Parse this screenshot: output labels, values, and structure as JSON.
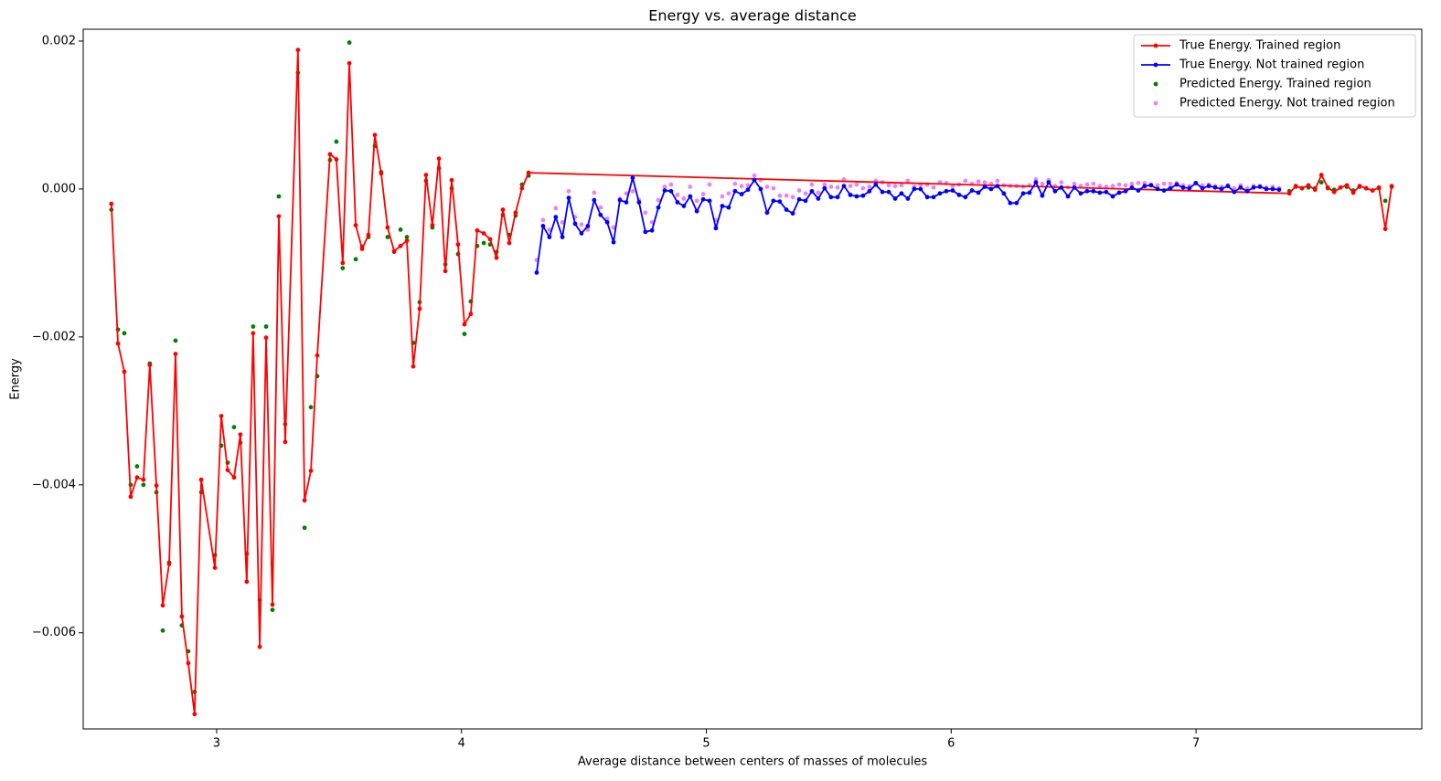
{
  "chart_data": {
    "type": "line",
    "title": "Energy vs. average distance",
    "x_label": "Average distance between centers of masses of molecules",
    "y_label": "Energy",
    "xlim": [
      2.455,
      7.922
    ],
    "ylim": [
      -0.0073,
      0.00216
    ],
    "xticks": [
      3,
      4,
      5,
      6,
      7
    ],
    "yticks": [
      {
        "value": 0.002,
        "label": "0.002"
      },
      {
        "value": 0,
        "label": "0.000"
      },
      {
        "value": -0.002,
        "label": "−0.002"
      },
      {
        "value": -0.004,
        "label": "−0.004"
      },
      {
        "value": -0.006,
        "label": "−0.006"
      }
    ],
    "grid": false,
    "legend": "upper right",
    "series": [
      {
        "name": "True Energy. Trained region",
        "color": "#ff0000",
        "type": "line",
        "x": [
          2.57,
          2.597,
          2.623,
          2.649,
          2.675,
          2.701,
          2.727,
          2.754,
          2.78,
          2.806,
          2.832,
          2.858,
          2.884,
          2.91,
          2.937,
          2.993,
          3.019,
          3.045,
          3.071,
          3.097,
          3.123,
          3.149,
          3.176,
          3.202,
          3.228,
          3.254,
          3.28,
          3.332,
          3.359,
          3.385,
          3.411,
          3.463,
          3.489,
          3.515,
          3.542,
          3.568,
          3.594,
          3.62,
          3.646,
          3.672,
          3.698,
          3.725,
          3.751,
          3.777,
          3.803,
          3.829,
          3.855,
          3.881,
          3.908,
          3.934,
          3.96,
          3.986,
          4.012,
          4.038,
          4.064,
          4.091,
          4.117,
          4.143,
          4.169,
          4.195,
          4.221,
          4.247,
          4.274,
          7.381,
          7.407,
          7.433,
          7.459,
          7.486,
          7.512,
          7.538,
          7.564,
          7.59,
          7.616,
          7.642,
          7.668,
          7.695,
          7.721,
          7.747,
          7.773,
          7.799
        ],
        "values": [
          -0.0002,
          -0.00209,
          -0.00247,
          -0.00416,
          -0.0039,
          -0.00393,
          -0.00238,
          -0.00401,
          -0.00563,
          -0.00507,
          -0.00223,
          -0.00578,
          -0.00641,
          -0.0071,
          -0.00393,
          -0.00512,
          -0.00307,
          -0.0038,
          -0.0039,
          -0.00332,
          -0.00531,
          -0.00195,
          -0.00619,
          -0.00201,
          -0.00562,
          -0.00037,
          -0.00342,
          0.00188,
          -0.00421,
          -0.00381,
          -0.00225,
          0.00047,
          0.0004,
          -0.001,
          0.0017,
          -0.00049,
          -0.00081,
          -0.00062,
          0.00073,
          0.00021,
          -0.00052,
          -0.00084,
          -0.00077,
          -0.0007,
          -0.0024,
          -0.00162,
          0.00019,
          -0.00049,
          0.00041,
          -0.00111,
          0.00012,
          -0.00075,
          -0.00183,
          -0.00169,
          -0.00056,
          -0.0006,
          -0.00068,
          -0.00093,
          -0.00028,
          -0.00073,
          -0.00032,
          1e-05,
          0.00022,
          -6e-05,
          4e-05,
          1e-05,
          5e-05,
          -1e-05,
          0.00019,
          2e-05,
          -4e-05,
          2e-05,
          5e-05,
          -5e-05,
          4e-05,
          1e-05,
          -2e-05,
          2e-05,
          -0.00054,
          4e-05
        ]
      },
      {
        "name": "True Energy. Not trained region",
        "color": "#0000ff",
        "type": "line",
        "x": [
          4.307,
          4.333,
          4.359,
          4.385,
          4.412,
          4.438,
          4.464,
          4.49,
          4.516,
          4.542,
          4.568,
          4.595,
          4.621,
          4.647,
          4.673,
          4.699,
          4.725,
          4.751,
          4.778,
          4.804,
          4.83,
          4.856,
          4.882,
          4.908,
          4.934,
          4.961,
          4.987,
          5.013,
          5.039,
          5.065,
          5.091,
          5.117,
          5.144,
          5.17,
          5.196,
          5.222,
          5.248,
          5.274,
          5.3,
          5.327,
          5.353,
          5.379,
          5.405,
          5.431,
          5.457,
          5.483,
          5.509,
          5.536,
          5.562,
          5.588,
          5.614,
          5.64,
          5.666,
          5.692,
          5.719,
          5.745,
          5.771,
          5.797,
          5.823,
          5.849,
          5.875,
          5.902,
          5.928,
          5.954,
          5.98,
          6.006,
          6.032,
          6.058,
          6.085,
          6.111,
          6.137,
          6.163,
          6.189,
          6.215,
          6.241,
          6.267,
          6.294,
          6.32,
          6.346,
          6.372,
          6.398,
          6.424,
          6.45,
          6.477,
          6.503,
          6.529,
          6.555,
          6.581,
          6.607,
          6.633,
          6.66,
          6.686,
          6.712,
          6.738,
          6.764,
          6.79,
          6.816,
          6.843,
          6.869,
          6.895,
          6.921,
          6.947,
          6.973,
          6.999,
          7.026,
          7.052,
          7.078,
          7.104,
          7.13,
          7.156,
          7.182,
          7.209,
          7.235,
          7.261,
          7.287,
          7.313,
          7.339
        ],
        "values": [
          -0.00113,
          -0.0005,
          -0.00065,
          -0.00038,
          -0.00065,
          -0.00012,
          -0.00047,
          -0.0006,
          -0.0005,
          -0.00015,
          -0.00035,
          -0.00045,
          -0.00072,
          -0.00015,
          -0.00018,
          0.00015,
          -0.00018,
          -0.00058,
          -0.00056,
          -0.00025,
          -2e-05,
          -3e-05,
          -0.00018,
          -0.00023,
          -0.0001,
          -0.0003,
          -0.00014,
          -0.00016,
          -0.00053,
          -0.00023,
          -0.00025,
          -3e-05,
          -7e-05,
          -1e-05,
          0.00012,
          0,
          -0.00032,
          -0.00016,
          -0.00017,
          -0.00028,
          -0.00033,
          -0.00014,
          -0.00016,
          -3e-05,
          -0.00013,
          1e-05,
          -0.00011,
          -0.00011,
          4e-05,
          -8e-05,
          -0.0001,
          -9e-05,
          -3e-05,
          6e-05,
          -4e-05,
          -4e-05,
          -0.00013,
          -6e-05,
          -0.00013,
          0,
          0,
          -0.00011,
          -0.00011,
          -6e-05,
          -3e-05,
          -2e-05,
          -8e-05,
          -0.00011,
          -2e-05,
          -5e-05,
          3e-05,
          0,
          4e-05,
          -6e-05,
          -0.00019,
          -0.00019,
          -6e-05,
          -5e-05,
          9e-05,
          -9e-05,
          9e-05,
          -3e-05,
          2e-05,
          -0.0001,
          2e-05,
          -6e-05,
          -3e-05,
          -3e-05,
          -5e-05,
          -4e-05,
          -0.0001,
          -5e-05,
          -3e-05,
          2e-05,
          -2e-05,
          4e-05,
          5e-05,
          0,
          -2e-05,
          1e-05,
          6e-05,
          2e-05,
          1e-05,
          8e-05,
          1e-05,
          4e-05,
          2e-05,
          0,
          4e-05,
          -4e-05,
          2e-05,
          -3e-05,
          2e-05,
          3e-05,
          0,
          0,
          -1e-05
        ]
      },
      {
        "name": "Predicted Energy. Trained region",
        "color": "#008000",
        "type": "scatter",
        "x": [
          2.57,
          2.597,
          2.623,
          2.649,
          2.675,
          2.701,
          2.727,
          2.754,
          2.78,
          2.806,
          2.832,
          2.858,
          2.884,
          2.91,
          2.937,
          2.993,
          3.019,
          3.045,
          3.071,
          3.097,
          3.123,
          3.149,
          3.176,
          3.202,
          3.228,
          3.254,
          3.28,
          3.332,
          3.359,
          3.385,
          3.411,
          3.463,
          3.489,
          3.515,
          3.542,
          3.568,
          3.594,
          3.62,
          3.646,
          3.672,
          3.698,
          3.725,
          3.751,
          3.777,
          3.803,
          3.829,
          3.855,
          3.881,
          3.908,
          3.934,
          3.96,
          3.986,
          4.012,
          4.038,
          4.064,
          4.091,
          4.117,
          4.143,
          4.169,
          4.195,
          4.221,
          4.247,
          4.274,
          7.381,
          7.407,
          7.433,
          7.459,
          7.486,
          7.512,
          7.538,
          7.564,
          7.59,
          7.616,
          7.642,
          7.668,
          7.695,
          7.721,
          7.747,
          7.773,
          7.799
        ],
        "values": [
          -0.00028,
          -0.0019,
          -0.00195,
          -0.004,
          -0.00375,
          -0.004,
          -0.00236,
          -0.0041,
          -0.00597,
          -0.00505,
          -0.00205,
          -0.0059,
          -0.00625,
          -0.0068,
          -0.0041,
          -0.00495,
          -0.00347,
          -0.0037,
          -0.00322,
          -0.00343,
          -0.00493,
          -0.00186,
          -0.00556,
          -0.00186,
          -0.00569,
          -0.0001,
          -0.00318,
          0.00157,
          -0.00458,
          -0.00295,
          -0.00253,
          0.00039,
          0.00064,
          -0.00107,
          0.00198,
          -0.00095,
          -0.00078,
          -0.00065,
          0.00058,
          0.00023,
          -0.00065,
          -0.00085,
          -0.00055,
          -0.00065,
          -0.00208,
          -0.00153,
          0.00011,
          -0.00052,
          0.00028,
          -0.00102,
          1e-05,
          -0.00088,
          -0.00196,
          -0.00152,
          -0.00077,
          -0.00073,
          -0.00075,
          -0.00085,
          -0.00035,
          -0.00062,
          -0.00036,
          6e-05,
          0.00018,
          -3e-05,
          3e-05,
          1e-05,
          2e-05,
          1e-05,
          9e-05,
          1e-05,
          -1e-05,
          2e-05,
          3e-05,
          -2e-05,
          3e-05,
          1e-05,
          -2e-05,
          1e-05,
          -0.00016,
          3e-05
        ]
      },
      {
        "name": "Predicted Energy. Not trained region",
        "color": "#ee82ee",
        "type": "scatter",
        "x": [
          4.307,
          4.333,
          4.359,
          4.385,
          4.412,
          4.438,
          4.464,
          4.49,
          4.516,
          4.542,
          4.568,
          4.595,
          4.621,
          4.647,
          4.673,
          4.699,
          4.725,
          4.751,
          4.778,
          4.804,
          4.83,
          4.856,
          4.882,
          4.908,
          4.934,
          4.961,
          4.987,
          5.013,
          5.039,
          5.065,
          5.091,
          5.117,
          5.144,
          5.17,
          5.196,
          5.222,
          5.248,
          5.274,
          5.3,
          5.327,
          5.353,
          5.379,
          5.405,
          5.431,
          5.457,
          5.483,
          5.509,
          5.536,
          5.562,
          5.588,
          5.614,
          5.64,
          5.666,
          5.692,
          5.719,
          5.745,
          5.771,
          5.797,
          5.823,
          5.849,
          5.875,
          5.902,
          5.928,
          5.954,
          5.98,
          6.006,
          6.032,
          6.058,
          6.085,
          6.111,
          6.137,
          6.163,
          6.189,
          6.215,
          6.241,
          6.267,
          6.294,
          6.32,
          6.346,
          6.372,
          6.398,
          6.424,
          6.45,
          6.477,
          6.503,
          6.529,
          6.555,
          6.581,
          6.607,
          6.633,
          6.66,
          6.686,
          6.712,
          6.738,
          6.764,
          6.79,
          6.816,
          6.843,
          6.869,
          6.895,
          6.921,
          6.947,
          6.973,
          6.999,
          7.026,
          7.052,
          7.078,
          7.104,
          7.13,
          7.156,
          7.182,
          7.209,
          7.235,
          7.261,
          7.287,
          7.313,
          7.339
        ],
        "values": [
          -0.00096,
          -0.00042,
          -0.00055,
          -0.00026,
          -0.00045,
          -3e-05,
          -0.00038,
          -0.00048,
          -0.00055,
          -5e-05,
          -0.00025,
          -0.0004,
          -0.00052,
          -0.00013,
          -6e-05,
          -3e-05,
          -0.00015,
          -0.00032,
          -0.00045,
          -0.00015,
          3e-05,
          6e-05,
          -8e-05,
          -0.00013,
          3e-05,
          -0.00016,
          -7e-05,
          6e-05,
          -0.00042,
          -0.0001,
          -6e-05,
          7e-05,
          4e-05,
          5e-05,
          0.00018,
          0.00012,
          3e-05,
          1e-05,
          -9e-05,
          -9e-05,
          -0.00011,
          -2e-05,
          -6e-05,
          6e-05,
          -5e-05,
          6e-05,
          3e-05,
          2e-05,
          0.00013,
          4e-05,
          6e-05,
          1e-05,
          3e-05,
          0.00011,
          9e-05,
          5e-05,
          4e-05,
          5e-05,
          0.00011,
          3e-05,
          6e-05,
          6e-05,
          2e-05,
          9e-05,
          8e-05,
          4e-05,
          6e-05,
          0.00011,
          7e-05,
          0.0001,
          9e-05,
          7e-05,
          0.00011,
          5e-05,
          4e-05,
          4e-05,
          3e-05,
          5e-05,
          0.00013,
          7e-05,
          0.00012,
          4e-05,
          9e-05,
          2e-05,
          7e-05,
          4e-05,
          6e-05,
          7e-05,
          4e-05,
          3e-05,
          4e-05,
          6e-05,
          5e-05,
          7e-05,
          8e-05,
          8e-05,
          6e-05,
          5e-05,
          7e-05,
          7e-05,
          8e-05,
          5e-05,
          4e-05,
          8e-05,
          5e-05,
          6e-05,
          4e-05,
          3e-05,
          5e-05,
          1e-05,
          5e-05,
          1e-05,
          4e-05,
          4e-05,
          2e-05,
          3e-05,
          1e-05
        ]
      }
    ]
  }
}
